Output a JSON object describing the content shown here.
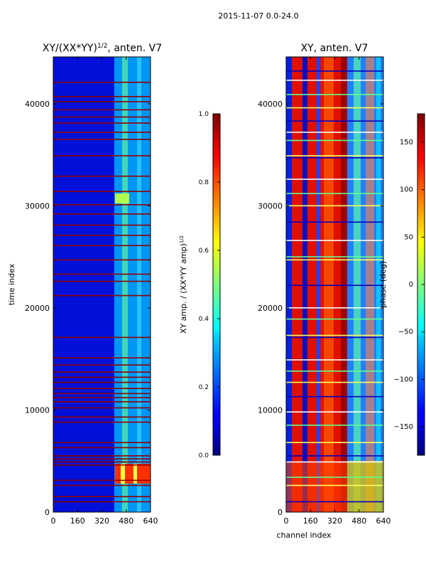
{
  "suptitle": "2015-11-07 0.0-24.0",
  "chart_data": [
    {
      "type": "heatmap",
      "title_prefix": "XY/(XX*YY)",
      "title_exp": "1/2",
      "title_suffix": ", anten. V7",
      "xlabel": "",
      "ylabel": "time index",
      "xlim": [
        0,
        640
      ],
      "ylim": [
        0,
        44600
      ],
      "xticks": [
        0,
        160,
        320,
        480,
        640
      ],
      "yticks": [
        0,
        10000,
        20000,
        30000,
        40000
      ],
      "colorbar": {
        "label_prefix": "XY amp. / (XX*YY amp)",
        "label_exp": "1/2",
        "range": [
          0.0,
          1.0
        ],
        "ticks": [
          "0.0",
          "0.2",
          "0.4",
          "0.6",
          "0.8",
          "1.0"
        ],
        "colormap": "jet"
      },
      "dominant_value_channels_0_400": 0.1,
      "dominant_value_channels_400_640": 0.4,
      "flagged_rows_value": 1.0,
      "flagged_row_times": [
        1000,
        1500,
        2600,
        3100,
        4600,
        4900,
        5200,
        5500,
        6300,
        6800,
        8800,
        9300,
        10200,
        10800,
        11200,
        11600,
        12100,
        12700,
        13200,
        13700,
        14400,
        15100,
        17100,
        21200,
        22600,
        23300,
        24700,
        26100,
        27100,
        28100,
        29200,
        30100,
        31400,
        32900,
        34900,
        36500,
        37200,
        38100,
        38700,
        39400,
        40200,
        40700,
        42100
      ]
    },
    {
      "type": "heatmap",
      "title": "XY, anten. V7",
      "xlabel": "channel index",
      "ylabel": "",
      "xlim": [
        0,
        640
      ],
      "ylim": [
        0,
        44600
      ],
      "xticks": [
        0,
        160,
        320,
        480,
        640
      ],
      "yticks": [
        0,
        10000,
        20000,
        30000,
        40000
      ],
      "colorbar": {
        "label": "phase (deg)",
        "range": [
          -180,
          180
        ],
        "ticks": [
          "−150",
          "−100",
          "−50",
          "0",
          "50",
          "100",
          "150"
        ],
        "tick_values": [
          -150,
          -100,
          -50,
          0,
          50,
          100,
          150
        ],
        "colormap": "jet"
      },
      "flagged_row_times": [
        1000,
        2600,
        3400,
        4900,
        5500,
        6800,
        8500,
        9800,
        11300,
        12700,
        13800,
        14900,
        17100,
        17300,
        18900,
        20000,
        22200,
        24700,
        25000,
        26600,
        28400,
        30000,
        31200,
        32600,
        34700,
        34900,
        36400,
        37200,
        38300,
        39600,
        40900,
        42300,
        43200
      ]
    }
  ]
}
